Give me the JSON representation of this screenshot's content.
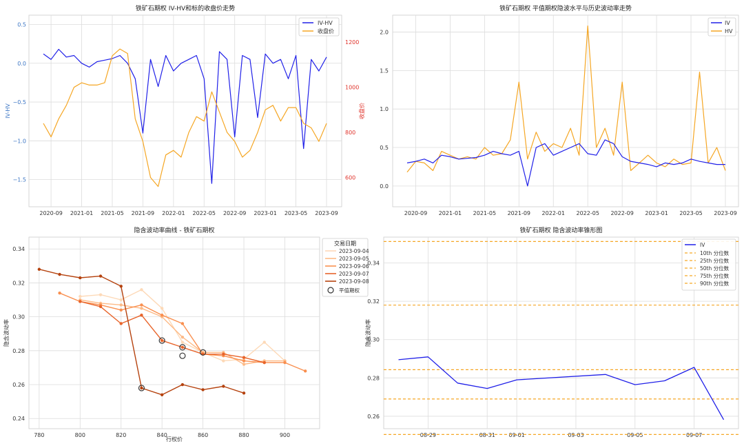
{
  "chart_data": [
    {
      "type": "line",
      "title": "铁矿石期权 IV-HV和标的收盘价走势",
      "xlabel": "",
      "ylabel": "IV-HV",
      "y2label": "收盘价",
      "ylim": [
        -1.85,
        0.62
      ],
      "y2lim": [
        470,
        1320
      ],
      "x_ticks": [
        "2020-09",
        "2021-01",
        "2021-05",
        "2021-09",
        "2022-01",
        "2022-05",
        "2022-09",
        "2023-01",
        "2023-05",
        "2023-09"
      ],
      "y_ticks": [
        0.5,
        0.0,
        -0.5,
        -1.0,
        -1.5
      ],
      "y_tick_labels": [
        "0.5",
        "0.0",
        "−0.5",
        "−1.0",
        "−1.5"
      ],
      "y2_ticks": [
        1200,
        1000,
        800,
        600
      ],
      "y2_tick_labels": [
        "1200",
        "1000",
        "800",
        "600"
      ],
      "x": [
        "2020-08",
        "2020-09",
        "2020-10",
        "2020-11",
        "2020-12",
        "2021-01",
        "2021-02",
        "2021-03",
        "2021-04",
        "2021-05",
        "2021-06",
        "2021-07",
        "2021-08",
        "2021-09",
        "2021-10",
        "2021-11",
        "2021-12",
        "2022-01",
        "2022-02",
        "2022-03",
        "2022-04",
        "2022-05",
        "2022-06",
        "2022-07",
        "2022-08",
        "2022-09",
        "2022-10",
        "2022-11",
        "2022-12",
        "2023-01",
        "2023-02",
        "2023-03",
        "2023-04",
        "2023-05",
        "2023-06",
        "2023-07",
        "2023-08",
        "2023-09"
      ],
      "series": [
        {
          "name": "IV-HV",
          "axis": "left",
          "color": "#1f1fe8",
          "values": [
            0.12,
            0.05,
            0.18,
            0.08,
            0.1,
            0.0,
            -0.05,
            0.02,
            0.04,
            0.06,
            0.1,
            0.0,
            -0.2,
            -0.9,
            0.05,
            -0.3,
            0.1,
            -0.1,
            0.0,
            0.05,
            0.1,
            -0.2,
            -1.55,
            0.15,
            0.05,
            -0.95,
            0.1,
            0.05,
            -0.7,
            0.12,
            0.0,
            0.05,
            -0.2,
            0.1,
            -1.1,
            0.05,
            -0.1,
            0.08
          ]
        },
        {
          "name": "收盘价",
          "axis": "right",
          "color": "#f5a623",
          "values": [
            840,
            780,
            860,
            920,
            1000,
            1020,
            1010,
            1010,
            1020,
            1140,
            1170,
            1150,
            860,
            760,
            600,
            560,
            700,
            720,
            690,
            800,
            870,
            850,
            980,
            890,
            800,
            760,
            690,
            720,
            800,
            900,
            920,
            850,
            910,
            910,
            840,
            820,
            760,
            840
          ]
        }
      ],
      "legend_position": "top-right"
    },
    {
      "type": "line",
      "title": "铁矿石期权 平值期权隐波水平与历史波动率走势",
      "xlabel": "",
      "ylabel": "",
      "ylim": [
        -0.27,
        2.22
      ],
      "x_ticks": [
        "2020-09",
        "2021-01",
        "2021-05",
        "2021-09",
        "2022-01",
        "2022-05",
        "2022-09",
        "2023-01",
        "2023-05",
        "2023-09"
      ],
      "y_ticks": [
        2.0,
        1.5,
        1.0,
        0.5,
        0.0
      ],
      "y_tick_labels": [
        "2.0",
        "1.5",
        "1.0",
        "0.5",
        "0.0"
      ],
      "x": [
        "2020-08",
        "2020-09",
        "2020-10",
        "2020-11",
        "2020-12",
        "2021-01",
        "2021-02",
        "2021-03",
        "2021-04",
        "2021-05",
        "2021-06",
        "2021-07",
        "2021-08",
        "2021-09",
        "2021-10",
        "2021-11",
        "2021-12",
        "2022-01",
        "2022-02",
        "2022-03",
        "2022-04",
        "2022-05",
        "2022-06",
        "2022-07",
        "2022-08",
        "2022-09",
        "2022-10",
        "2022-11",
        "2022-12",
        "2023-01",
        "2023-02",
        "2023-03",
        "2023-04",
        "2023-05",
        "2023-06",
        "2023-07",
        "2023-08",
        "2023-09"
      ],
      "series": [
        {
          "name": "IV",
          "color": "#1f1fe8",
          "values": [
            0.3,
            0.32,
            0.35,
            0.3,
            0.4,
            0.38,
            0.35,
            0.36,
            0.37,
            0.4,
            0.45,
            0.42,
            0.4,
            0.45,
            0.0,
            0.5,
            0.55,
            0.4,
            0.45,
            0.5,
            0.55,
            0.42,
            0.4,
            0.6,
            0.55,
            0.38,
            0.32,
            0.3,
            0.28,
            0.25,
            0.3,
            0.28,
            0.3,
            0.35,
            0.32,
            0.3,
            0.28,
            0.28
          ]
        },
        {
          "name": "HV",
          "color": "#f5a623",
          "values": [
            0.18,
            0.32,
            0.3,
            0.2,
            0.45,
            0.4,
            0.35,
            0.38,
            0.35,
            0.5,
            0.4,
            0.42,
            0.6,
            1.35,
            0.35,
            0.7,
            0.45,
            0.55,
            0.5,
            0.75,
            0.4,
            2.08,
            0.5,
            0.75,
            0.4,
            1.35,
            0.2,
            0.3,
            0.4,
            0.3,
            0.25,
            0.35,
            0.28,
            0.3,
            1.48,
            0.3,
            0.5,
            0.2
          ]
        }
      ],
      "legend_position": "top-right"
    },
    {
      "type": "line",
      "title": "隐含波动率曲线 - 铁矿石期权",
      "xlabel": "行权价",
      "ylabel": "隐含波动率",
      "xlim": [
        775,
        917
      ],
      "ylim": [
        0.234,
        0.347
      ],
      "x_ticks": [
        780,
        800,
        820,
        840,
        860,
        880,
        900
      ],
      "y_ticks": [
        0.34,
        0.32,
        0.3,
        0.28,
        0.26,
        0.24
      ],
      "y_tick_labels": [
        "0.34",
        "0.32",
        "0.30",
        "0.28",
        "0.26",
        "0.24"
      ],
      "legend_title": "交易日期",
      "legend_position": "top-right",
      "series": [
        {
          "name": "2023-09-04",
          "color": "#fdd9b7",
          "x": [
            800,
            810,
            820,
            830,
            840,
            850,
            860,
            870,
            880,
            890,
            900
          ],
          "values": [
            0.312,
            0.313,
            0.31,
            0.316,
            0.305,
            0.285,
            0.279,
            0.274,
            0.275,
            0.285,
            0.274
          ]
        },
        {
          "name": "2023-09-05",
          "color": "#fdba87",
          "x": [
            800,
            810,
            820,
            830,
            840,
            850,
            860,
            870,
            880,
            890,
            900
          ],
          "values": [
            0.31,
            0.308,
            0.307,
            0.305,
            0.3,
            0.288,
            0.279,
            0.279,
            0.272,
            0.274,
            0.274
          ]
        },
        {
          "name": "2023-09-06",
          "color": "#f98f4f",
          "x": [
            790,
            800,
            810,
            820,
            830,
            840,
            850,
            860,
            870,
            880,
            890,
            900,
            910
          ],
          "values": [
            0.314,
            0.309,
            0.307,
            0.304,
            0.307,
            0.301,
            0.296,
            0.278,
            0.277,
            0.274,
            0.273,
            0.273,
            0.268
          ]
        },
        {
          "name": "2023-09-07",
          "color": "#e8642a",
          "x": [
            800,
            810,
            820,
            830,
            840,
            850,
            860,
            870,
            880,
            890
          ],
          "values": [
            0.309,
            0.306,
            0.296,
            0.301,
            0.286,
            0.282,
            0.278,
            0.278,
            0.276,
            0.273
          ]
        },
        {
          "name": "2023-09-08",
          "color": "#b5420e",
          "x": [
            780,
            790,
            800,
            810,
            820,
            830,
            840,
            850,
            860,
            870,
            880
          ],
          "values": [
            0.328,
            0.325,
            0.323,
            0.324,
            0.318,
            0.258,
            0.254,
            0.26,
            0.257,
            0.259,
            0.255
          ]
        }
      ],
      "atm_legend_label": "平值期权",
      "atm_points": [
        {
          "x": 830,
          "y": 0.258
        },
        {
          "x": 840,
          "y": 0.286
        },
        {
          "x": 850,
          "y": 0.282
        },
        {
          "x": 850,
          "y": 0.277
        },
        {
          "x": 860,
          "y": 0.279
        }
      ]
    },
    {
      "type": "line",
      "title": "铁矿石期权 隐含波动率锥形图",
      "xlabel": "",
      "ylabel": "隐含波动率",
      "xlim": [
        "2023-08-27T12:00",
        "2023-09-08T12:00"
      ],
      "ylim": [
        0.2535,
        0.3535
      ],
      "x_ticks": [
        "2023-08-29",
        "2023-08-31",
        "2023-09-01",
        "2023-09-03",
        "2023-09-05",
        "2023-09-07"
      ],
      "x_tick_labels": [
        "08-29",
        "08-31",
        "09-01",
        "09-03",
        "09-05",
        "09-07"
      ],
      "y_ticks": [
        0.34,
        0.32,
        0.3,
        0.28,
        0.26
      ],
      "y_tick_labels": [
        "0.34",
        "0.32",
        "0.30",
        "0.28",
        "0.26"
      ],
      "series": [
        {
          "name": "IV",
          "color": "#1f1fe8",
          "x": [
            "2023-08-28",
            "2023-08-29",
            "2023-08-30",
            "2023-08-31",
            "2023-09-01",
            "2023-09-04",
            "2023-09-05",
            "2023-09-06",
            "2023-09-07",
            "2023-09-08"
          ],
          "values": [
            0.2895,
            0.291,
            0.2773,
            0.2745,
            0.279,
            0.2818,
            0.2765,
            0.2785,
            0.2855,
            0.2582
          ]
        }
      ],
      "percentiles": [
        {
          "name": "10th 分位数",
          "value": 0.2505
        },
        {
          "name": "25th 分位数",
          "value": 0.269
        },
        {
          "name": "50th 分位数",
          "value": 0.2843
        },
        {
          "name": "75th 分位数",
          "value": 0.318
        },
        {
          "name": "90th 分位数",
          "value": 0.3512
        }
      ],
      "percentile_color": "#f5a623",
      "legend_position": "top-right"
    }
  ]
}
